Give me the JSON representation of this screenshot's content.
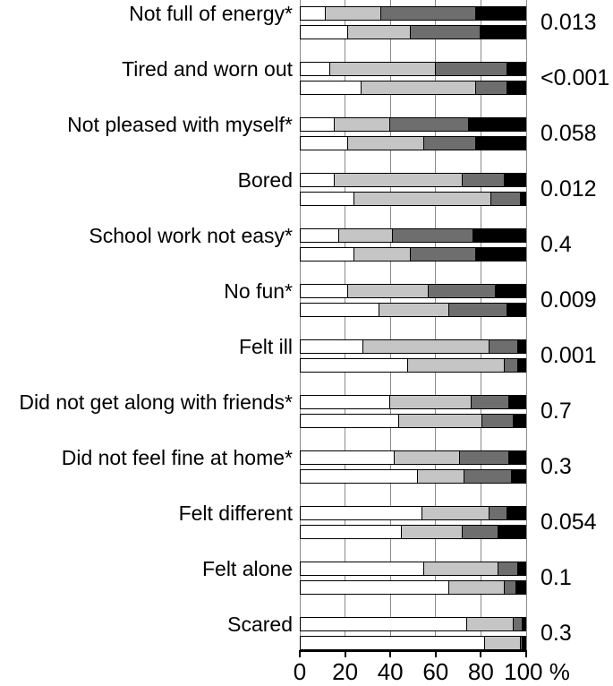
{
  "chart_data": {
    "type": "bar",
    "variant": "horizontal-stacked-paired",
    "title": "",
    "xlabel": "%",
    "x_ticks": [
      0,
      20,
      40,
      60,
      80,
      100
    ],
    "x_axis_suffix": "%",
    "xlim": [
      0,
      100
    ],
    "grid": true,
    "segment_colors": [
      "#ffffff",
      "#c5c5c5",
      "#6e6e6e",
      "#000000"
    ],
    "segment_names": [
      "white",
      "light-gray",
      "dark-gray",
      "black"
    ],
    "p_value_column": true,
    "categories": [
      {
        "label": "Not full of energy*",
        "p_value": "0.013",
        "bars": [
          [
            11,
            25,
            42,
            22
          ],
          [
            21,
            28,
            31,
            20
          ]
        ]
      },
      {
        "label": "Tired and worn out",
        "p_value": "<0.001",
        "bars": [
          [
            13,
            47,
            32,
            8
          ],
          [
            27,
            51,
            14,
            8
          ]
        ]
      },
      {
        "label": "Not pleased with myself*",
        "p_value": "0.058",
        "bars": [
          [
            15,
            25,
            35,
            25
          ],
          [
            21,
            34,
            23,
            22
          ]
        ]
      },
      {
        "label": "Bored",
        "p_value": "0.012",
        "bars": [
          [
            15,
            57,
            19,
            9
          ],
          [
            24,
            61,
            13,
            2
          ]
        ]
      },
      {
        "label": "School work not easy*",
        "p_value": "0.4",
        "bars": [
          [
            17,
            24,
            36,
            23
          ],
          [
            24,
            25,
            29,
            22
          ]
        ]
      },
      {
        "label": "No fun*",
        "p_value": "0.009",
        "bars": [
          [
            21,
            36,
            30,
            13
          ],
          [
            35,
            31,
            26,
            8
          ]
        ]
      },
      {
        "label": "Felt ill",
        "p_value": "0.001",
        "bars": [
          [
            28,
            56,
            13,
            3
          ],
          [
            48,
            43,
            6,
            3
          ]
        ]
      },
      {
        "label": "Did not get along with friends*",
        "p_value": "0.7",
        "bars": [
          [
            40,
            36,
            17,
            7
          ],
          [
            44,
            37,
            14,
            5
          ]
        ]
      },
      {
        "label": "Did not feel fine at home*",
        "p_value": "0.3",
        "bars": [
          [
            42,
            29,
            22,
            7
          ],
          [
            52,
            21,
            21,
            6
          ]
        ]
      },
      {
        "label": "Felt different",
        "p_value": "0.054",
        "bars": [
          [
            54,
            30,
            8,
            8
          ],
          [
            45,
            27,
            16,
            12
          ]
        ]
      },
      {
        "label": "Felt alone",
        "p_value": "0.1",
        "bars": [
          [
            55,
            33,
            9,
            3
          ],
          [
            66,
            25,
            5,
            4
          ]
        ]
      },
      {
        "label": "Scared",
        "p_value": "0.3",
        "bars": [
          [
            74,
            21,
            4,
            1
          ],
          [
            82,
            16,
            1,
            1
          ]
        ]
      }
    ]
  }
}
